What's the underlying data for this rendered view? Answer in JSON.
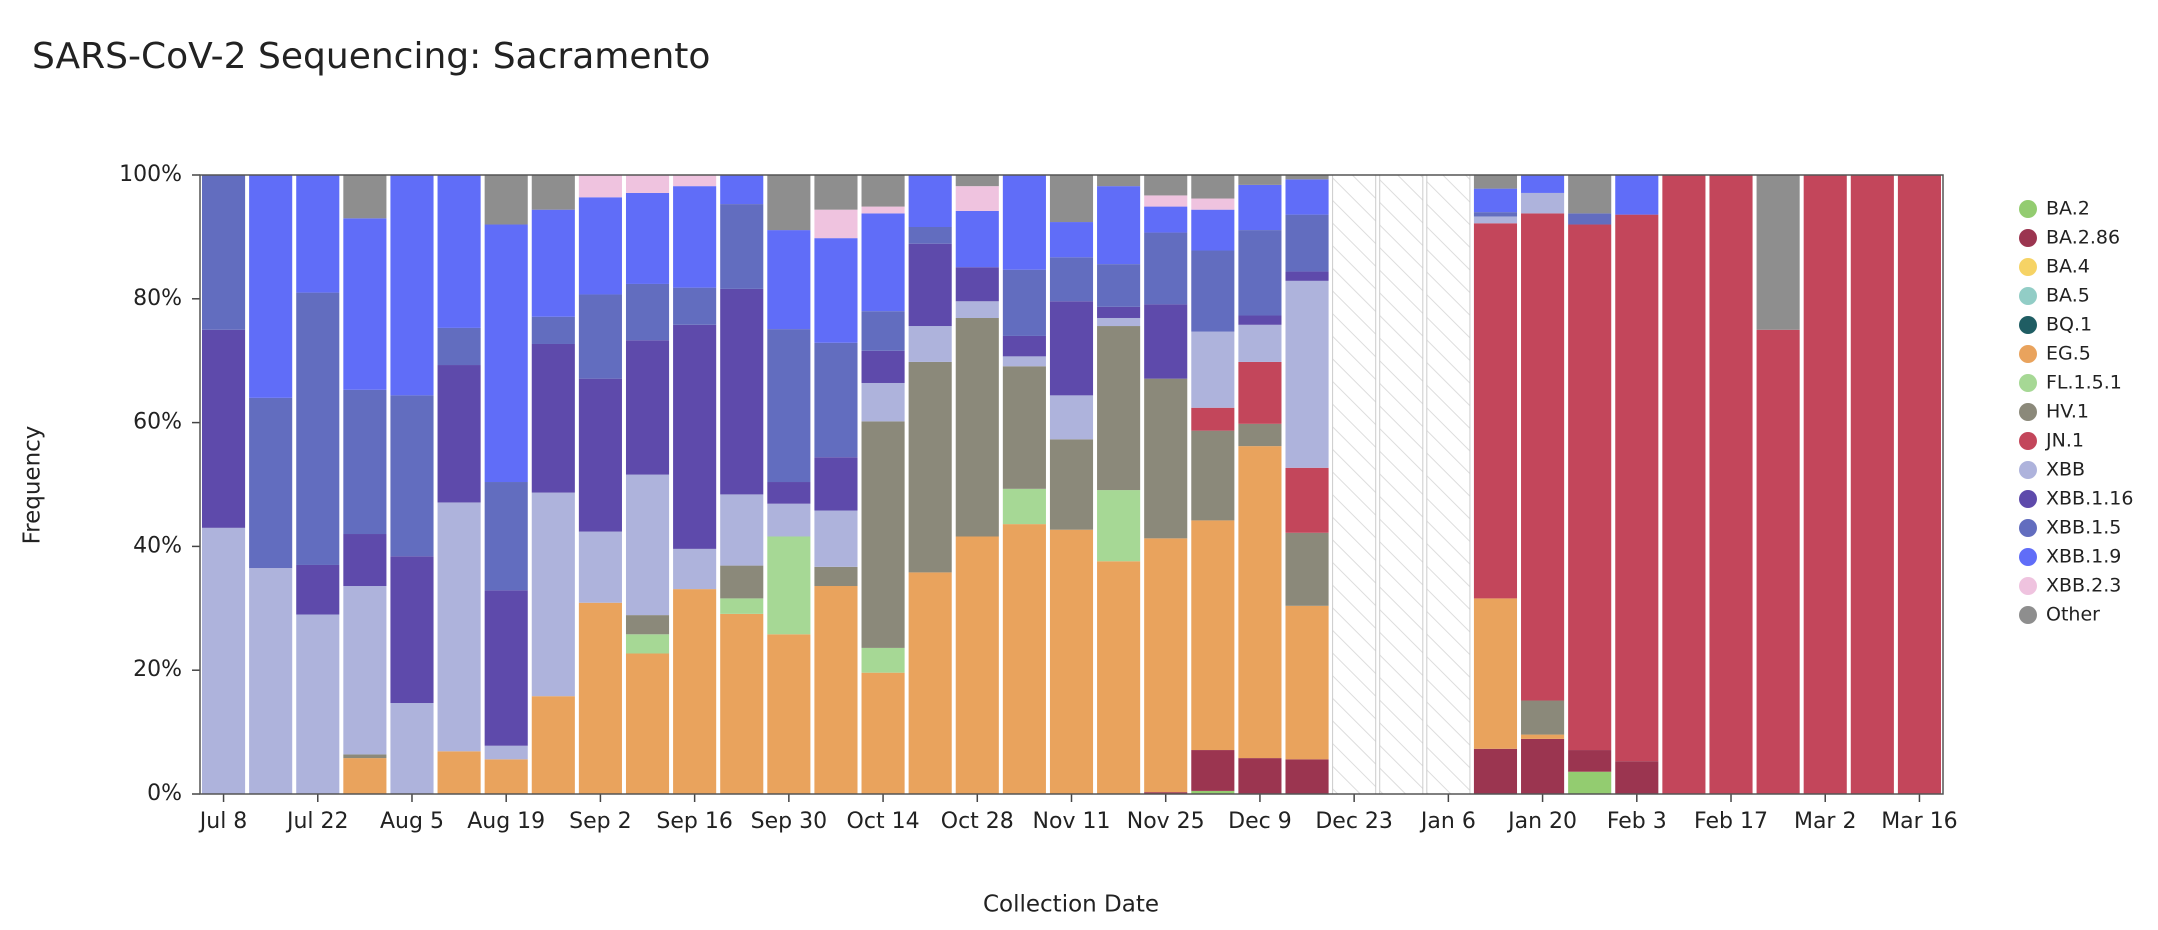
{
  "chart_data": {
    "type": "stacked-bar",
    "title": "SARS-CoV-2 Sequencing: Sacramento",
    "x_label": "Collection Date",
    "y_label": "Frequency",
    "categories": [
      "Jul 8",
      null,
      "Jul 22",
      null,
      "Aug 5",
      null,
      "Aug 19",
      null,
      "Sep 2",
      null,
      "Sep 16",
      null,
      "Sep 30",
      null,
      "Oct 14",
      null,
      "Oct 28",
      null,
      "Nov 11",
      null,
      "Nov 25",
      null,
      "Dec 9",
      null,
      "Dec 23",
      null,
      "Jan 6",
      null,
      "Jan 20",
      null,
      "Feb 3",
      null,
      "Feb 17",
      null,
      "Mar 2",
      null,
      "Mar 16"
    ],
    "ylim": [
      0,
      100
    ],
    "yticks": [
      {
        "value": 0,
        "label": "0%"
      },
      {
        "value": 20,
        "label": "20%"
      },
      {
        "value": 40,
        "label": "40%"
      },
      {
        "value": 60,
        "label": "60%"
      },
      {
        "value": 80,
        "label": "80%"
      },
      {
        "value": 100,
        "label": "100%"
      }
    ],
    "legend": "right",
    "series": [
      {
        "name": "BA.2",
        "color": "#93cc70",
        "values": [
          0,
          0,
          0,
          0,
          0,
          0,
          0,
          0,
          0,
          0,
          0,
          0,
          0,
          0,
          0,
          0,
          0,
          0,
          0,
          0,
          0,
          0.5,
          0,
          0,
          null,
          null,
          null,
          0,
          0,
          3.6,
          0,
          0,
          0,
          0,
          0,
          0,
          0
        ]
      },
      {
        "name": "BA.2.86",
        "color": "#9b3550",
        "values": [
          0,
          0,
          0,
          0,
          0,
          0,
          0,
          0,
          0,
          0,
          0,
          0,
          0,
          0,
          0,
          0,
          0,
          0,
          0,
          0,
          0.3,
          6.6,
          5.8,
          5.6,
          null,
          null,
          null,
          7.3,
          8.9,
          3.5,
          5.3,
          0,
          0,
          0,
          0,
          0,
          0
        ]
      },
      {
        "name": "BA.4",
        "color": "#f6d365",
        "values": [
          0,
          0,
          0,
          0,
          0,
          0,
          0,
          0,
          0,
          0,
          0,
          0,
          0,
          0,
          0,
          0,
          0,
          0,
          0,
          0,
          0,
          0,
          0,
          0,
          null,
          null,
          null,
          0,
          0,
          0,
          0,
          0,
          0,
          0,
          0,
          0,
          0
        ]
      },
      {
        "name": "BA.5",
        "color": "#92cdc6",
        "values": [
          0,
          0,
          0,
          0,
          0,
          0,
          0,
          0,
          0,
          0,
          0,
          0,
          0,
          0,
          0,
          0,
          0,
          0,
          0,
          0,
          0,
          0,
          0,
          0,
          null,
          null,
          null,
          0,
          0,
          0,
          0,
          0,
          0,
          0,
          0,
          0,
          0
        ]
      },
      {
        "name": "BQ.1",
        "color": "#1f5d63",
        "values": [
          0,
          0,
          0,
          0,
          0,
          0,
          0,
          0,
          0,
          0,
          0,
          0,
          0,
          0,
          0,
          0,
          0,
          0,
          0,
          0,
          0,
          0,
          0,
          0,
          null,
          null,
          null,
          0,
          0,
          0,
          0,
          0,
          0,
          0,
          0,
          0,
          0
        ]
      },
      {
        "name": "EG.5",
        "color": "#e9a35d",
        "values": [
          0,
          0,
          0,
          5.8,
          0,
          6.9,
          5.6,
          15.8,
          30.9,
          22.7,
          33.1,
          29.1,
          25.8,
          33.6,
          19.6,
          35.8,
          41.6,
          43.6,
          42.7,
          37.6,
          41,
          37.1,
          50.4,
          24.8,
          null,
          null,
          null,
          24.3,
          0.7,
          0,
          0,
          0,
          0,
          0,
          0,
          0,
          0
        ]
      },
      {
        "name": "FL.1.5.1",
        "color": "#a6d895",
        "values": [
          0,
          0,
          0,
          0,
          0,
          0,
          0,
          0,
          0,
          3.1,
          0,
          2.5,
          15.8,
          0,
          4,
          0,
          0,
          5.7,
          0,
          11.5,
          0,
          0,
          0,
          0,
          null,
          null,
          null,
          0,
          0,
          0,
          0,
          0,
          0,
          0,
          0,
          0,
          0
        ]
      },
      {
        "name": "HV.1",
        "color": "#8b897a",
        "values": [
          0,
          0,
          0,
          0.6,
          0,
          0,
          0,
          0,
          0,
          3.1,
          0,
          5.3,
          0,
          3.1,
          36.6,
          34,
          35.3,
          19.8,
          14.6,
          26.5,
          25.8,
          14.5,
          3.6,
          11.8,
          null,
          null,
          null,
          0,
          5.5,
          0,
          0,
          0,
          0,
          0,
          0,
          0,
          0
        ]
      },
      {
        "name": "JN.1",
        "color": "#c3465b",
        "values": [
          0,
          0,
          0,
          0,
          0,
          0,
          0,
          0,
          0,
          0,
          0,
          0,
          0,
          0,
          0,
          0,
          0,
          0,
          0,
          0,
          0,
          3.7,
          10,
          10.5,
          null,
          null,
          null,
          60.6,
          78.7,
          84.9,
          88.3,
          100,
          100,
          75,
          100,
          100,
          100
        ]
      },
      {
        "name": "XBB",
        "color": "#aeb3dc",
        "values": [
          43,
          36.5,
          29,
          27.2,
          14.7,
          40.2,
          2.2,
          32.9,
          11.5,
          22.7,
          6.5,
          11.5,
          5.3,
          9.1,
          6.2,
          5.8,
          2.7,
          1.6,
          7.1,
          1.3,
          0,
          12.3,
          6,
          30.2,
          null,
          null,
          null,
          1.1,
          3.3,
          0,
          0,
          0,
          0,
          0,
          0,
          0,
          0
        ]
      },
      {
        "name": "XBB.1.16",
        "color": "#5e4aab",
        "values": [
          32,
          0,
          8,
          8.4,
          23.7,
          22.2,
          25.1,
          24,
          24.7,
          21.7,
          36.2,
          33.2,
          3.5,
          8.6,
          5.2,
          13.3,
          5.5,
          3.3,
          15.2,
          1.8,
          12,
          0,
          1.5,
          1.5,
          null,
          null,
          null,
          0,
          0,
          0,
          0,
          0,
          0,
          0,
          0,
          0,
          0
        ]
      },
      {
        "name": "XBB.1.5",
        "color": "#626dbf",
        "values": [
          25,
          27.5,
          44,
          23.3,
          26,
          6,
          17.5,
          4.4,
          13.6,
          9.1,
          6,
          13.7,
          24.7,
          18.5,
          6.4,
          2.7,
          0,
          10.7,
          7.1,
          6.9,
          11.6,
          13.1,
          13.8,
          9.2,
          null,
          null,
          null,
          0.7,
          0,
          1.8,
          0,
          0,
          0,
          0,
          0,
          0,
          0
        ]
      },
      {
        "name": "XBB.1.9",
        "color": "#606df8",
        "values": [
          0,
          36,
          19,
          27.7,
          35.6,
          24.7,
          41.6,
          17.3,
          15.7,
          14.7,
          16.4,
          4.7,
          16,
          16.9,
          15.8,
          8.4,
          9.1,
          15.3,
          5.7,
          12.6,
          4.2,
          6.6,
          7.3,
          5.7,
          null,
          null,
          null,
          3.8,
          2.9,
          0,
          6.4,
          0,
          0,
          0,
          0,
          0,
          0
        ]
      },
      {
        "name": "XBB.2.3",
        "color": "#efc3df",
        "values": [
          0,
          0,
          0,
          0,
          0,
          0,
          0,
          0,
          3.6,
          2.9,
          1.8,
          0,
          0,
          4.6,
          1.1,
          0,
          4,
          0,
          0,
          0,
          1.8,
          1.8,
          0,
          0,
          null,
          null,
          null,
          0,
          0,
          0,
          0,
          0,
          0,
          0,
          0,
          0,
          0
        ]
      },
      {
        "name": "Other",
        "color": "#8e8e8e",
        "values": [
          0,
          0,
          0,
          7,
          0,
          0,
          8,
          5.6,
          0,
          0,
          0,
          0,
          8.9,
          5.6,
          5.1,
          0,
          1.8,
          0,
          7.6,
          1.8,
          3.3,
          3.8,
          1.6,
          0.7,
          null,
          null,
          null,
          2.2,
          0,
          6.2,
          0,
          0,
          0,
          25,
          0,
          0,
          0
        ]
      }
    ]
  }
}
